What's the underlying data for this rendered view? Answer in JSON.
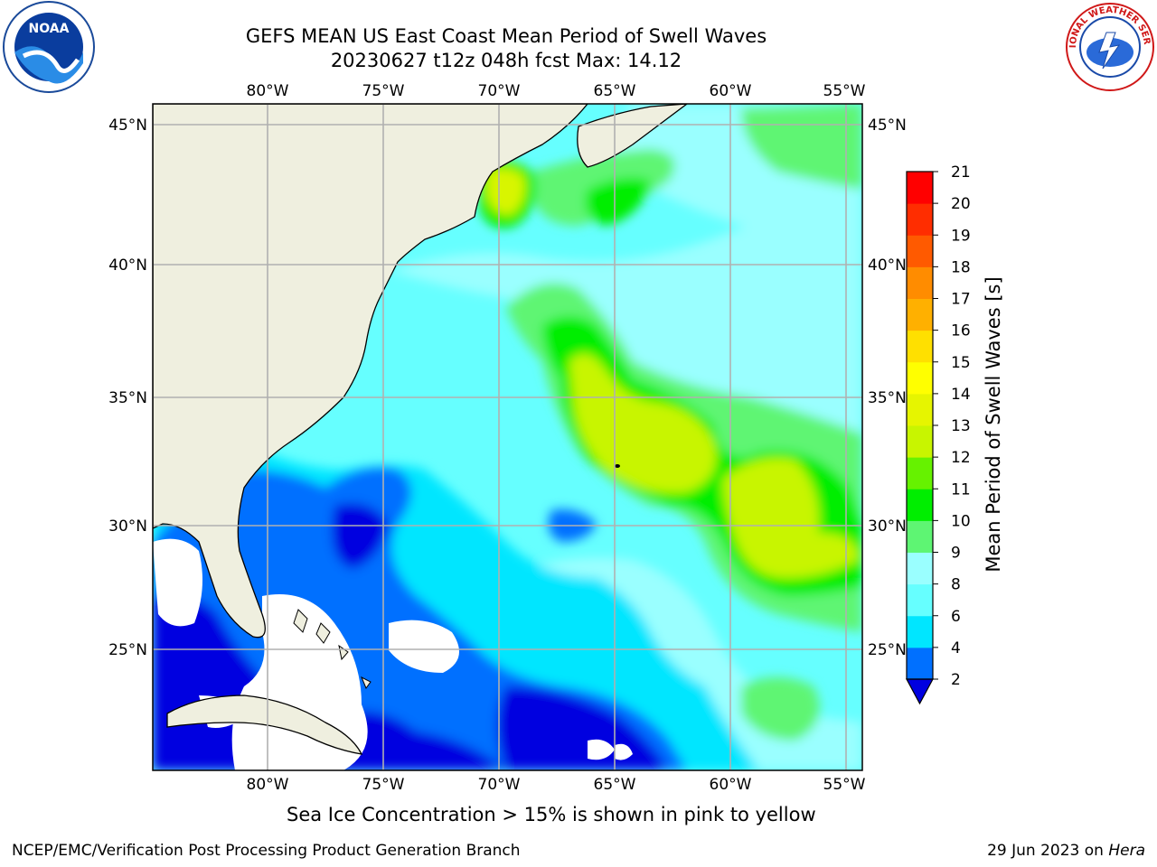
{
  "title": {
    "line1": "GEFS MEAN US East Coast Mean Period of Swell Waves",
    "line2": "20230627 t12z 048h fcst   Max: 14.12"
  },
  "map": {
    "lon_labels": [
      "80°W",
      "75°W",
      "70°W",
      "65°W",
      "60°W",
      "55°W"
    ],
    "lat_labels": [
      "45°N",
      "40°N",
      "35°N",
      "30°N",
      "25°N"
    ],
    "colors": {
      "land": "#efefdf",
      "ocean_base": "#66ffff",
      "grid": "#b0b0b0"
    }
  },
  "colorbar": {
    "label": "Mean Period of Swell Waves [s]",
    "ticks": [
      "21",
      "20",
      "19",
      "18",
      "17",
      "16",
      "15",
      "14",
      "13",
      "12",
      "11",
      "10",
      "9",
      "8",
      "6",
      "4",
      "2"
    ],
    "colors_bottom_to_top": [
      "#0070ff",
      "#00e6ff",
      "#66ffff",
      "#9affff",
      "#5ef573",
      "#00ee00",
      "#66f200",
      "#c8f500",
      "#e6f500",
      "#ffff00",
      "#ffe000",
      "#ffb000",
      "#ff8c00",
      "#ff5a00",
      "#ff2d00",
      "#ff0000"
    ],
    "extend_color": "#0000e0"
  },
  "footer": {
    "note": "Sea Ice Concentration > 15% is shown in pink to yellow",
    "credit": "NCEP/EMC/Verification Post Processing Product Generation Branch",
    "date": "29 Jun 2023 on",
    "host": "Hera"
  },
  "logos": {
    "left": "NOAA",
    "right": "NATIONAL WEATHER SERVICE"
  }
}
